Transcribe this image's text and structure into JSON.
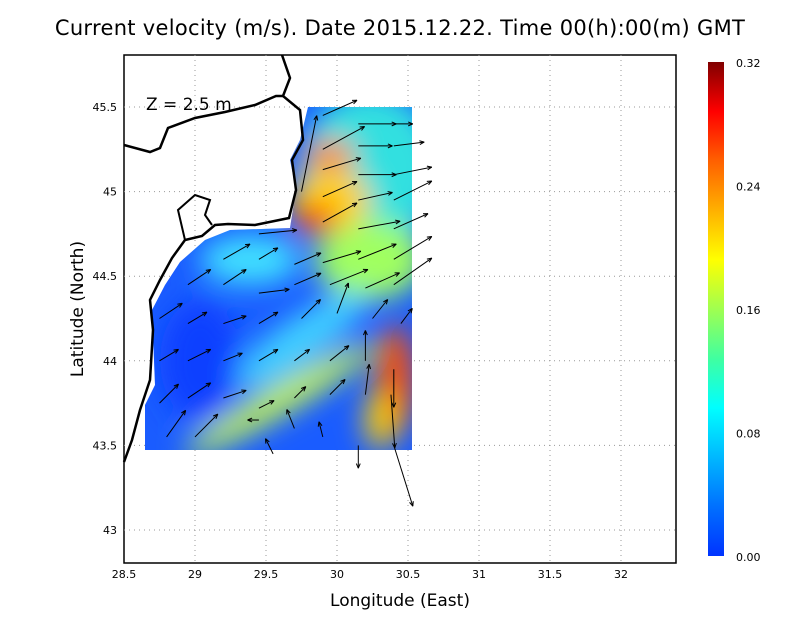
{
  "title": "Current velocity (m/s). Date 2015.12.22. Time 00(h):00(m) GMT",
  "depth_label": "Z = 2.5 m",
  "xlabel": "Longitude (East)",
  "ylabel": "Latitude (North)",
  "x_ticks": [
    "28.5",
    "29",
    "29.5",
    "30",
    "30.5",
    "31",
    "31.5",
    "32"
  ],
  "y_ticks": [
    "43",
    "43.5",
    "44",
    "44.5",
    "45",
    "45.5"
  ],
  "colorbar": {
    "ticks": [
      "0.00",
      "0.08",
      "0.16",
      "0.24",
      "0.32"
    ],
    "min": 0,
    "max": 0.32,
    "colors": [
      "#0033ff",
      "#0070ff",
      "#00b8ff",
      "#00ffff",
      "#40ffa0",
      "#a0ff50",
      "#ffff00",
      "#ffb000",
      "#ff6000",
      "#ff0000",
      "#800000"
    ]
  },
  "chart_data": {
    "type": "vector-field",
    "xlim": [
      28.5,
      32.4
    ],
    "ylim": [
      42.8,
      45.8
    ],
    "vectors": [
      [
        29.9,
        45.45,
        0.09,
        0.04
      ],
      [
        30.15,
        45.4,
        0.1,
        0.0
      ],
      [
        30.4,
        45.4,
        0.05,
        0.0
      ],
      [
        29.9,
        45.25,
        0.11,
        0.06
      ],
      [
        30.15,
        45.27,
        0.09,
        0.0
      ],
      [
        30.4,
        45.27,
        0.08,
        0.01
      ],
      [
        29.9,
        45.13,
        0.1,
        0.03
      ],
      [
        30.15,
        45.1,
        0.1,
        0.0
      ],
      [
        30.4,
        45.1,
        0.1,
        0.02
      ],
      [
        29.75,
        45.0,
        0.04,
        0.2
      ],
      [
        29.9,
        44.97,
        0.09,
        0.04
      ],
      [
        30.15,
        44.95,
        0.09,
        0.02
      ],
      [
        30.4,
        44.95,
        0.1,
        0.05
      ],
      [
        29.45,
        44.75,
        0.1,
        0.01
      ],
      [
        29.9,
        44.82,
        0.09,
        0.05
      ],
      [
        30.15,
        44.78,
        0.11,
        0.02
      ],
      [
        30.4,
        44.78,
        0.09,
        0.04
      ],
      [
        29.2,
        44.6,
        0.07,
        0.04
      ],
      [
        29.45,
        44.6,
        0.05,
        0.03
      ],
      [
        29.7,
        44.57,
        0.07,
        0.03
      ],
      [
        29.9,
        44.58,
        0.1,
        0.03
      ],
      [
        30.15,
        44.6,
        0.1,
        0.04
      ],
      [
        30.4,
        44.6,
        0.1,
        0.06
      ],
      [
        28.95,
        44.45,
        0.06,
        0.04
      ],
      [
        29.2,
        44.45,
        0.06,
        0.04
      ],
      [
        29.45,
        44.4,
        0.08,
        0.01
      ],
      [
        29.7,
        44.45,
        0.07,
        0.03
      ],
      [
        29.95,
        44.45,
        0.1,
        0.04
      ],
      [
        30.2,
        44.43,
        0.09,
        0.04
      ],
      [
        30.4,
        44.45,
        0.1,
        0.07
      ],
      [
        28.75,
        44.25,
        0.06,
        0.04
      ],
      [
        28.95,
        44.22,
        0.05,
        0.03
      ],
      [
        29.2,
        44.22,
        0.06,
        0.02
      ],
      [
        29.45,
        44.22,
        0.05,
        0.03
      ],
      [
        29.75,
        44.25,
        0.05,
        0.05
      ],
      [
        30.0,
        44.28,
        0.03,
        0.08
      ],
      [
        30.25,
        44.25,
        0.04,
        0.05
      ],
      [
        30.45,
        44.22,
        0.03,
        0.04
      ],
      [
        28.75,
        44.0,
        0.05,
        0.03
      ],
      [
        28.95,
        44.0,
        0.06,
        0.03
      ],
      [
        29.2,
        44.0,
        0.05,
        0.02
      ],
      [
        29.45,
        44.0,
        0.05,
        0.03
      ],
      [
        29.7,
        44.0,
        0.04,
        0.03
      ],
      [
        29.95,
        44.0,
        0.05,
        0.04
      ],
      [
        30.2,
        44.0,
        0.0,
        0.08
      ],
      [
        30.4,
        43.95,
        0.0,
        -0.1
      ],
      [
        28.75,
        43.75,
        0.05,
        0.05
      ],
      [
        28.95,
        43.78,
        0.06,
        0.04
      ],
      [
        29.2,
        43.78,
        0.06,
        0.02
      ],
      [
        29.45,
        43.72,
        0.04,
        0.02
      ],
      [
        29.7,
        43.78,
        0.03,
        0.03
      ],
      [
        29.95,
        43.8,
        0.04,
        0.04
      ],
      [
        30.2,
        43.8,
        0.01,
        0.08
      ],
      [
        30.38,
        43.8,
        0.01,
        -0.14
      ],
      [
        28.8,
        43.55,
        0.05,
        0.07
      ],
      [
        29.0,
        43.55,
        0.06,
        0.06
      ],
      [
        29.45,
        43.65,
        -0.03,
        0.0
      ],
      [
        29.55,
        43.45,
        -0.02,
        0.04
      ],
      [
        29.7,
        43.6,
        -0.02,
        0.05
      ],
      [
        29.9,
        43.55,
        -0.01,
        0.04
      ],
      [
        30.15,
        43.5,
        0.0,
        -0.06
      ],
      [
        30.4,
        43.5,
        0.05,
        -0.16
      ]
    ]
  }
}
